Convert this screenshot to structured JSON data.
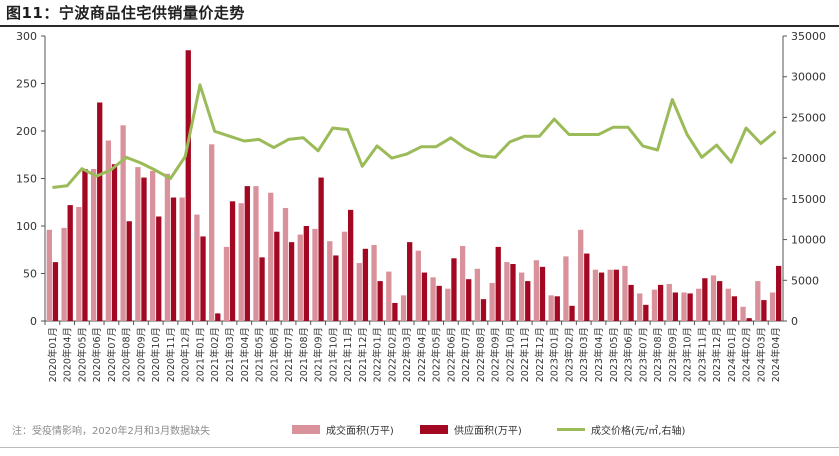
{
  "title": "图11：宁波商品住宅供销量价走势",
  "note": "注：受疫情影响，2020年2月和3月数据缺失",
  "colors": {
    "area": "#d9929b",
    "supply": "#a30822",
    "price": "#9bbb59",
    "axis": "#555555"
  },
  "chart_data": {
    "type": "bar+line",
    "categories": [
      "2020年01月",
      "2020年04月",
      "2020年05月",
      "2020年06月",
      "2020年07月",
      "2020年08月",
      "2020年09月",
      "2020年10月",
      "2020年11月",
      "2020年12月",
      "2021年01月",
      "2021年02月",
      "2021年03月",
      "2021年04月",
      "2021年05月",
      "2021年06月",
      "2021年07月",
      "2021年08月",
      "2021年09月",
      "2021年10月",
      "2021年11月",
      "2021年12月",
      "2022年01月",
      "2022年02月",
      "2022年03月",
      "2022年04月",
      "2022年05月",
      "2022年06月",
      "2022年07月",
      "2022年08月",
      "2022年09月",
      "2022年10月",
      "2022年11月",
      "2022年12月",
      "2023年01月",
      "2023年02月",
      "2023年03月",
      "2023年04月",
      "2023年05月",
      "2023年06月",
      "2023年07月",
      "2023年08月",
      "2023年09月",
      "2023年10月",
      "2023年11月",
      "2023年12月",
      "2024年01月",
      "2024年02月",
      "2024年03月",
      "2024年04月"
    ],
    "series": [
      {
        "name": "成交面积(万平)",
        "type": "bar",
        "axis": "left",
        "values": [
          96,
          98,
          120,
          160,
          190,
          206,
          162,
          158,
          155,
          130,
          112,
          186,
          78,
          124,
          142,
          135,
          119,
          91,
          97,
          84,
          94,
          61,
          80,
          52,
          27,
          74,
          46,
          34,
          79,
          55,
          40,
          62,
          51,
          64,
          27,
          68,
          96,
          54,
          54,
          58,
          29,
          33,
          39,
          30,
          34,
          48,
          34,
          15,
          42,
          30
        ]
      },
      {
        "name": "供应面积(万平)",
        "type": "bar",
        "axis": "left",
        "values": [
          62,
          122,
          160,
          230,
          165,
          105,
          151,
          110,
          130,
          285,
          89,
          8,
          126,
          142,
          67,
          94,
          83,
          100,
          151,
          69,
          117,
          76,
          42,
          19,
          83,
          51,
          37,
          66,
          44,
          23,
          78,
          60,
          42,
          57,
          26,
          16,
          71,
          51,
          54,
          38,
          17,
          38,
          30,
          29,
          45,
          42,
          26,
          3,
          22,
          58
        ]
      },
      {
        "name": "成交价格(元/㎡,右轴)",
        "type": "line",
        "axis": "right",
        "values": [
          16400,
          16600,
          18700,
          17800,
          18600,
          20100,
          19400,
          18500,
          17500,
          20200,
          29000,
          23300,
          22700,
          22100,
          22300,
          21300,
          22300,
          22500,
          20900,
          23700,
          23500,
          19000,
          21500,
          20000,
          20500,
          21400,
          21400,
          22500,
          21200,
          20300,
          20100,
          22000,
          22700,
          22700,
          24800,
          22900,
          22900,
          22900,
          23800,
          23800,
          21500,
          21000,
          27200,
          22900,
          20100,
          21600,
          19500,
          23700,
          21800,
          23300
        ]
      }
    ],
    "y_left": {
      "min": 0,
      "max": 300,
      "ticks": [
        0,
        50,
        100,
        150,
        200,
        250,
        300
      ]
    },
    "y_right": {
      "min": 0,
      "max": 35000,
      "ticks": [
        0,
        5000,
        10000,
        15000,
        20000,
        25000,
        30000,
        35000
      ]
    },
    "legend_position": "bottom",
    "grid": false
  }
}
